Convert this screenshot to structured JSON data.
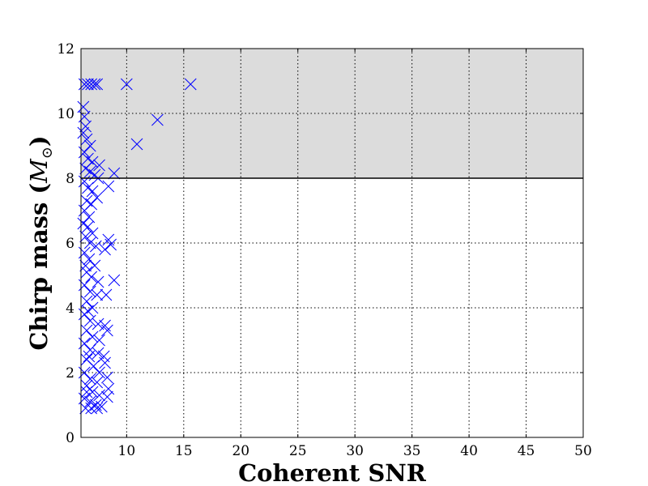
{
  "chart_data": {
    "type": "scatter",
    "xlabel": "Coherent SNR",
    "ylabel": "Chirp mass",
    "ylabel_unit": "M",
    "xlim": [
      6,
      50
    ],
    "ylim": [
      0,
      12
    ],
    "x_ticks": [
      10,
      15,
      20,
      25,
      30,
      35,
      40,
      45,
      50
    ],
    "y_ticks": [
      0,
      2,
      4,
      6,
      8,
      10,
      12
    ],
    "grid": true,
    "grid_style": "dotted",
    "marker": "x",
    "colors": {
      "marker": "#0000ff",
      "shaded_region": "#dcdcdc",
      "frame": "#000000"
    },
    "shaded_region": {
      "y_from": 8,
      "y_to": 12
    },
    "threshold_line_y": 8,
    "series": [
      {
        "points": [
          [
            6.3,
            10.9
          ],
          [
            6.6,
            10.9
          ],
          [
            6.9,
            10.9
          ],
          [
            7.2,
            10.9
          ],
          [
            7.4,
            10.9
          ],
          [
            10.0,
            10.9
          ],
          [
            15.6,
            10.9
          ],
          [
            12.7,
            9.8
          ],
          [
            10.9,
            9.05
          ],
          [
            6.2,
            10.2
          ],
          [
            6.3,
            9.9
          ],
          [
            6.4,
            9.6
          ],
          [
            6.2,
            9.4
          ],
          [
            6.5,
            9.2
          ],
          [
            6.8,
            9.0
          ],
          [
            6.3,
            8.8
          ],
          [
            6.6,
            8.6
          ],
          [
            7.0,
            8.5
          ],
          [
            7.6,
            8.4
          ],
          [
            8.9,
            8.15
          ],
          [
            6.4,
            8.3
          ],
          [
            6.8,
            8.2
          ],
          [
            7.2,
            8.1
          ],
          [
            7.5,
            8.0
          ],
          [
            8.4,
            7.75
          ],
          [
            6.3,
            7.9
          ],
          [
            6.6,
            7.7
          ],
          [
            7.0,
            7.6
          ],
          [
            7.4,
            7.4
          ],
          [
            6.5,
            7.3
          ],
          [
            6.9,
            7.2
          ],
          [
            6.3,
            7.0
          ],
          [
            6.7,
            6.8
          ],
          [
            6.2,
            6.6
          ],
          [
            6.6,
            6.5
          ],
          [
            7.0,
            6.3
          ],
          [
            8.4,
            6.1
          ],
          [
            8.6,
            5.95
          ],
          [
            6.4,
            6.2
          ],
          [
            6.8,
            6.0
          ],
          [
            7.3,
            5.9
          ],
          [
            8.1,
            5.8
          ],
          [
            6.3,
            5.7
          ],
          [
            6.7,
            5.5
          ],
          [
            7.2,
            5.3
          ],
          [
            6.5,
            5.1
          ],
          [
            6.9,
            4.95
          ],
          [
            7.5,
            4.8
          ],
          [
            8.9,
            4.85
          ],
          [
            6.3,
            4.7
          ],
          [
            6.8,
            4.5
          ],
          [
            7.4,
            4.4
          ],
          [
            8.2,
            4.4
          ],
          [
            6.5,
            4.2
          ],
          [
            7.0,
            4.0
          ],
          [
            6.3,
            3.8
          ],
          [
            6.8,
            3.6
          ],
          [
            7.5,
            3.5
          ],
          [
            8.1,
            3.45
          ],
          [
            8.3,
            3.3
          ],
          [
            6.5,
            3.3
          ],
          [
            7.0,
            3.1
          ],
          [
            7.6,
            3.0
          ],
          [
            6.3,
            2.9
          ],
          [
            6.8,
            2.7
          ],
          [
            7.5,
            2.6
          ],
          [
            8.0,
            2.5
          ],
          [
            8.1,
            2.3
          ],
          [
            6.5,
            2.4
          ],
          [
            7.1,
            2.2
          ],
          [
            7.6,
            2.0
          ],
          [
            6.3,
            2.0
          ],
          [
            6.8,
            1.8
          ],
          [
            8.3,
            1.85
          ],
          [
            7.4,
            1.7
          ],
          [
            8.4,
            1.5
          ],
          [
            6.5,
            1.6
          ],
          [
            7.0,
            1.4
          ],
          [
            7.6,
            1.3
          ],
          [
            8.3,
            1.25
          ],
          [
            6.3,
            1.2
          ],
          [
            6.8,
            1.1
          ],
          [
            7.3,
            1.0
          ],
          [
            7.8,
            0.95
          ],
          [
            6.4,
            0.9
          ],
          [
            6.9,
            0.9
          ],
          [
            7.4,
            0.9
          ],
          [
            6.6,
            3.9
          ],
          [
            6.4,
            5.3
          ],
          [
            6.7,
            2.5
          ],
          [
            6.5,
            1.4
          ]
        ]
      }
    ]
  }
}
